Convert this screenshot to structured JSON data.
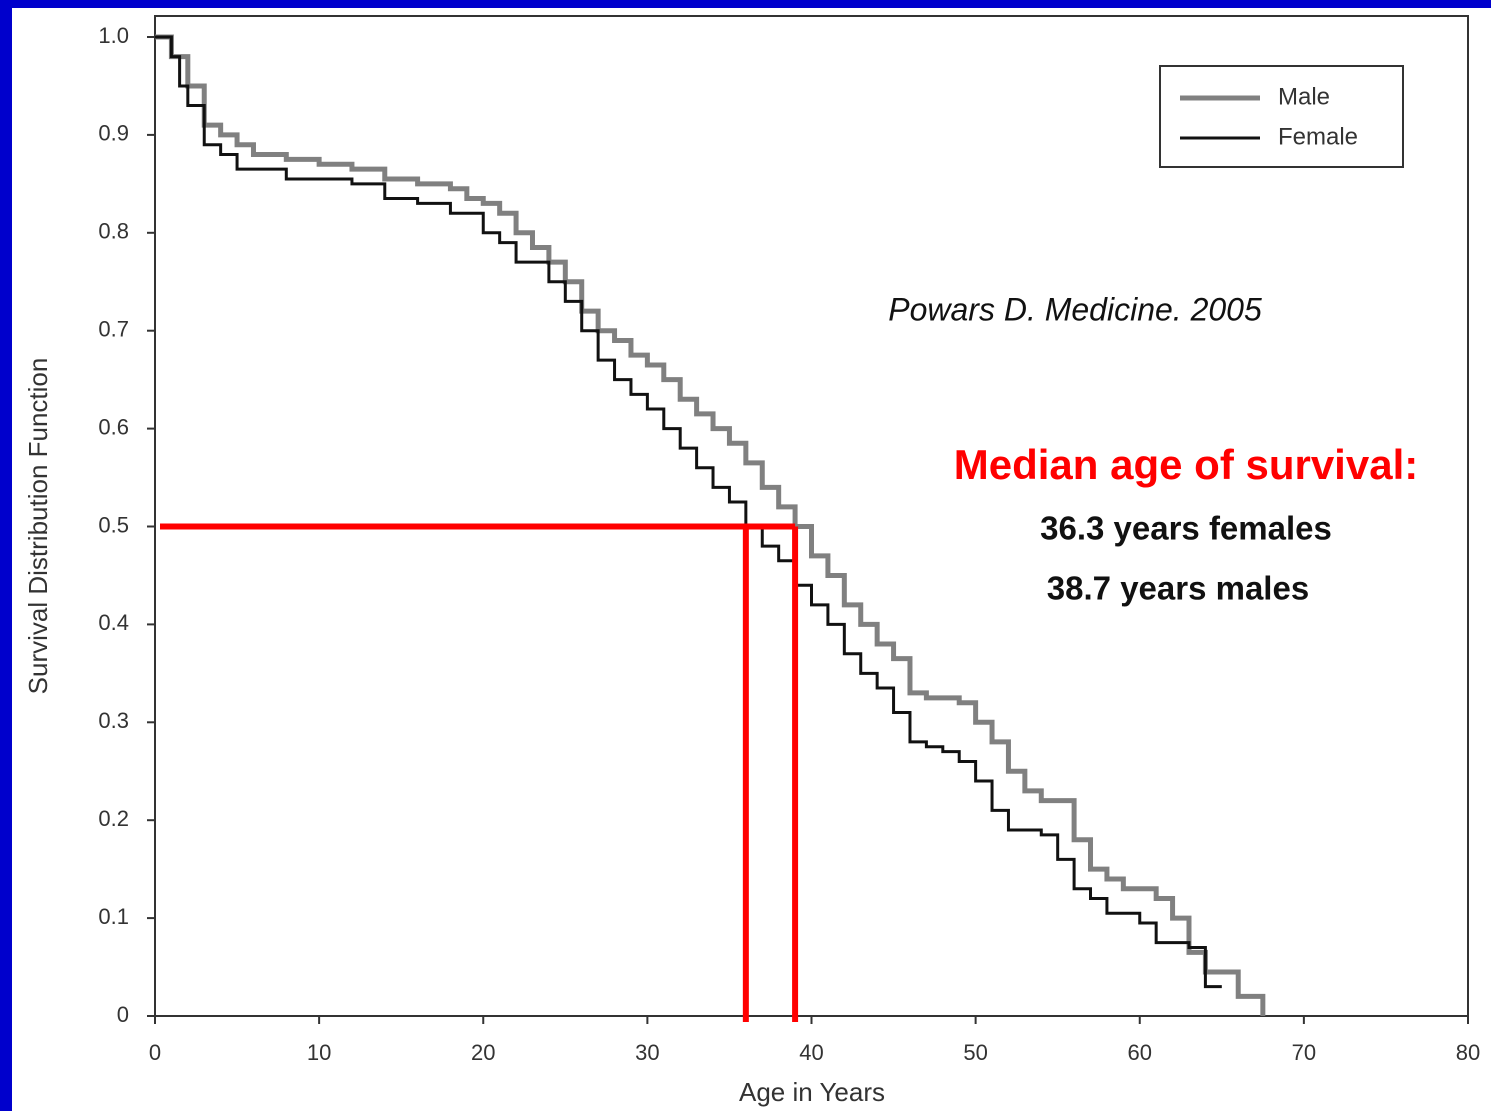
{
  "chart_data": {
    "type": "line",
    "drawstyle": "steps-post",
    "xlabel": "Age in Years",
    "ylabel": "Survival Distribution Function",
    "xlim": [
      0,
      80
    ],
    "xticks": [
      0,
      10,
      20,
      30,
      40,
      50,
      60,
      70,
      80
    ],
    "ylim": [
      0,
      1
    ],
    "yticks": [
      0,
      0.1,
      0.2,
      0.3,
      0.4,
      0.5,
      0.6,
      0.7,
      0.8,
      0.9,
      {
        "value": 1,
        "label": "1.0"
      }
    ],
    "legend": "top-right",
    "series": [
      {
        "name": "Male",
        "color": "#808080",
        "x": [
          0,
          1,
          2,
          3,
          4,
          5,
          6,
          8,
          10,
          12,
          14,
          16,
          18,
          19,
          20,
          21,
          22,
          23,
          24,
          25,
          26,
          27,
          28,
          29,
          30,
          31,
          32,
          33,
          34,
          35,
          36,
          37,
          38,
          39,
          40,
          41,
          42,
          43,
          44,
          45,
          46,
          47,
          49,
          50,
          51,
          52,
          53,
          54,
          56,
          57,
          58,
          59,
          61,
          62,
          63,
          64,
          66,
          67.5
        ],
        "values": [
          1.0,
          0.98,
          0.95,
          0.91,
          0.9,
          0.89,
          0.88,
          0.875,
          0.87,
          0.865,
          0.855,
          0.85,
          0.845,
          0.835,
          0.83,
          0.82,
          0.8,
          0.785,
          0.77,
          0.75,
          0.72,
          0.7,
          0.69,
          0.675,
          0.665,
          0.65,
          0.63,
          0.615,
          0.6,
          0.585,
          0.565,
          0.54,
          0.52,
          0.5,
          0.47,
          0.45,
          0.42,
          0.4,
          0.38,
          0.365,
          0.33,
          0.325,
          0.32,
          0.3,
          0.28,
          0.25,
          0.23,
          0.22,
          0.18,
          0.15,
          0.14,
          0.13,
          0.12,
          0.1,
          0.065,
          0.045,
          0.02,
          0
        ]
      },
      {
        "name": "Female",
        "color": "#111111",
        "x": [
          0,
          1,
          1.5,
          2,
          3,
          4,
          5,
          8,
          12,
          14,
          16,
          18,
          20,
          21,
          22,
          24,
          25,
          26,
          27,
          28,
          29,
          30,
          31,
          32,
          33,
          34,
          35,
          36,
          37,
          38,
          39,
          40,
          41,
          42,
          43,
          44,
          45,
          46,
          47,
          48,
          49,
          50,
          51,
          52,
          54,
          55,
          56,
          57,
          58,
          60,
          61,
          63,
          64,
          65
        ],
        "values": [
          1.0,
          0.98,
          0.95,
          0.93,
          0.89,
          0.88,
          0.865,
          0.855,
          0.85,
          0.835,
          0.83,
          0.82,
          0.8,
          0.79,
          0.77,
          0.75,
          0.73,
          0.7,
          0.67,
          0.65,
          0.635,
          0.62,
          0.6,
          0.58,
          0.56,
          0.54,
          0.525,
          0.5,
          0.48,
          0.465,
          0.44,
          0.42,
          0.4,
          0.37,
          0.35,
          0.335,
          0.31,
          0.28,
          0.275,
          0.27,
          0.26,
          0.24,
          0.21,
          0.19,
          0.185,
          0.16,
          0.13,
          0.12,
          0.105,
          0.095,
          0.075,
          0.07,
          0.03,
          0.03
        ]
      }
    ],
    "reference_lines": {
      "color": "#ff0000",
      "y": 0.5,
      "x": [
        36,
        39
      ]
    },
    "annotations": [
      "Powars D. Medicine. 2005",
      "Median age of survival:",
      "36.3 years females",
      "38.7 years males"
    ]
  }
}
